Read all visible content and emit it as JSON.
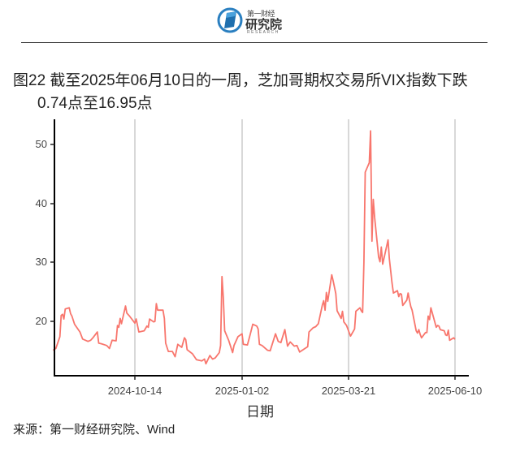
{
  "header": {
    "logo_title": "第一财经",
    "logo_name": "研究院",
    "logo_sub": "RESEARCH"
  },
  "figure": {
    "title_line1": "图22  截至2025年06月10日的一周，芝加哥期权交易所VIX指数下跌",
    "title_line2": "0.74点至16.95点",
    "source": "来源：第一财经研究院、Wind"
  },
  "colors": {
    "line": "#F8766D",
    "grid": "#BEBEBE",
    "axis": "#000000"
  },
  "chart_data": {
    "type": "line",
    "title": "截至2025年06月10日的一周，芝加哥期权交易所VIX指数下跌0.74点至16.95点",
    "xlabel": "日期",
    "ylabel": "",
    "ylim": [
      10.7,
      54.5
    ],
    "yticks": [
      20,
      30,
      40,
      50
    ],
    "xticks": [
      "2024-10-14",
      "2025-01-02",
      "2025-03-21",
      "2025-06-10"
    ],
    "grid": "vertical lines at x ticks",
    "legend": "none",
    "series": [
      {
        "name": "VIX",
        "points": [
          [
            "2024-08-14",
            15.1
          ],
          [
            "2024-08-16",
            15.4
          ],
          [
            "2024-08-19",
            17.4
          ],
          [
            "2024-08-20",
            21.0
          ],
          [
            "2024-08-21",
            21.2
          ],
          [
            "2024-08-22",
            20.4
          ],
          [
            "2024-08-23",
            22.1
          ],
          [
            "2024-08-26",
            22.3
          ],
          [
            "2024-08-27",
            21.3
          ],
          [
            "2024-08-28",
            20.9
          ],
          [
            "2024-08-30",
            19.5
          ],
          [
            "2024-09-03",
            18.2
          ],
          [
            "2024-09-05",
            17.0
          ],
          [
            "2024-09-09",
            16.6
          ],
          [
            "2024-09-11",
            16.8
          ],
          [
            "2024-09-13",
            17.3
          ],
          [
            "2024-09-16",
            18.2
          ],
          [
            "2024-09-17",
            16.3
          ],
          [
            "2024-09-19",
            16.2
          ],
          [
            "2024-09-23",
            15.9
          ],
          [
            "2024-09-25",
            15.4
          ],
          [
            "2024-09-27",
            16.8
          ],
          [
            "2024-09-30",
            16.7
          ],
          [
            "2024-10-01",
            19.3
          ],
          [
            "2024-10-02",
            19.0
          ],
          [
            "2024-10-03",
            20.5
          ],
          [
            "2024-10-04",
            19.6
          ],
          [
            "2024-10-07",
            22.6
          ],
          [
            "2024-10-08",
            21.4
          ],
          [
            "2024-10-10",
            20.9
          ],
          [
            "2024-10-14",
            19.7
          ],
          [
            "2024-10-15",
            20.4
          ],
          [
            "2024-10-17",
            18.2
          ],
          [
            "2024-10-21",
            18.4
          ],
          [
            "2024-10-23",
            19.2
          ],
          [
            "2024-10-24",
            19.0
          ],
          [
            "2024-10-25",
            20.4
          ],
          [
            "2024-10-28",
            19.9
          ],
          [
            "2024-10-29",
            20.0
          ],
          [
            "2024-10-30",
            23.0
          ],
          [
            "2024-10-31",
            21.9
          ],
          [
            "2024-11-04",
            21.9
          ],
          [
            "2024-11-05",
            20.5
          ],
          [
            "2024-11-06",
            16.3
          ],
          [
            "2024-11-08",
            14.9
          ],
          [
            "2024-11-11",
            14.9
          ],
          [
            "2024-11-13",
            14.0
          ],
          [
            "2024-11-15",
            16.1
          ],
          [
            "2024-11-18",
            15.6
          ],
          [
            "2024-11-20",
            17.2
          ],
          [
            "2024-11-21",
            16.9
          ],
          [
            "2024-11-22",
            15.2
          ],
          [
            "2024-11-26",
            14.5
          ],
          [
            "2024-11-29",
            13.5
          ],
          [
            "2024-12-03",
            13.3
          ],
          [
            "2024-12-05",
            13.6
          ],
          [
            "2024-12-06",
            12.8
          ],
          [
            "2024-12-09",
            14.2
          ],
          [
            "2024-12-11",
            13.6
          ],
          [
            "2024-12-13",
            13.8
          ],
          [
            "2024-12-16",
            14.7
          ],
          [
            "2024-12-17",
            15.9
          ],
          [
            "2024-12-18",
            27.6
          ],
          [
            "2024-12-19",
            24.1
          ],
          [
            "2024-12-20",
            18.4
          ],
          [
            "2024-12-23",
            16.8
          ],
          [
            "2024-12-26",
            14.7
          ],
          [
            "2024-12-27",
            15.9
          ],
          [
            "2024-12-30",
            17.4
          ],
          [
            "2025-01-02",
            17.9
          ],
          [
            "2025-01-03",
            16.1
          ],
          [
            "2025-01-06",
            16.0
          ],
          [
            "2025-01-08",
            17.7
          ],
          [
            "2025-01-10",
            19.5
          ],
          [
            "2025-01-13",
            19.2
          ],
          [
            "2025-01-14",
            18.7
          ],
          [
            "2025-01-15",
            16.1
          ],
          [
            "2025-01-17",
            15.9
          ],
          [
            "2025-01-21",
            15.1
          ],
          [
            "2025-01-23",
            15.0
          ],
          [
            "2025-01-27",
            17.9
          ],
          [
            "2025-01-29",
            16.6
          ],
          [
            "2025-01-31",
            16.4
          ],
          [
            "2025-02-03",
            18.6
          ],
          [
            "2025-02-05",
            15.8
          ],
          [
            "2025-02-07",
            16.5
          ],
          [
            "2025-02-10",
            15.8
          ],
          [
            "2025-02-12",
            15.9
          ],
          [
            "2025-02-14",
            14.8
          ],
          [
            "2025-02-18",
            15.4
          ],
          [
            "2025-02-20",
            15.7
          ],
          [
            "2025-02-21",
            18.2
          ],
          [
            "2025-02-24",
            18.9
          ],
          [
            "2025-02-26",
            19.1
          ],
          [
            "2025-02-28",
            19.6
          ],
          [
            "2025-03-03",
            22.8
          ],
          [
            "2025-03-04",
            23.5
          ],
          [
            "2025-03-05",
            21.9
          ],
          [
            "2025-03-06",
            24.9
          ],
          [
            "2025-03-07",
            23.4
          ],
          [
            "2025-03-10",
            27.9
          ],
          [
            "2025-03-11",
            26.9
          ],
          [
            "2025-03-13",
            24.7
          ],
          [
            "2025-03-14",
            21.8
          ],
          [
            "2025-03-17",
            20.5
          ],
          [
            "2025-03-18",
            21.7
          ],
          [
            "2025-03-19",
            19.9
          ],
          [
            "2025-03-21",
            19.3
          ],
          [
            "2025-03-24",
            17.5
          ],
          [
            "2025-03-26",
            18.3
          ],
          [
            "2025-03-27",
            18.7
          ],
          [
            "2025-03-28",
            21.7
          ],
          [
            "2025-03-31",
            22.3
          ],
          [
            "2025-04-01",
            21.8
          ],
          [
            "2025-04-02",
            21.5
          ],
          [
            "2025-04-03",
            30.0
          ],
          [
            "2025-04-04",
            45.3
          ],
          [
            "2025-04-07",
            46.9
          ],
          [
            "2025-04-08",
            52.3
          ],
          [
            "2025-04-09",
            33.6
          ],
          [
            "2025-04-10",
            40.7
          ],
          [
            "2025-04-11",
            37.6
          ],
          [
            "2025-04-14",
            30.9
          ],
          [
            "2025-04-15",
            30.1
          ],
          [
            "2025-04-16",
            32.6
          ],
          [
            "2025-04-17",
            29.7
          ],
          [
            "2025-04-21",
            33.8
          ],
          [
            "2025-04-22",
            30.6
          ],
          [
            "2025-04-23",
            28.5
          ],
          [
            "2025-04-24",
            26.5
          ],
          [
            "2025-04-25",
            24.8
          ],
          [
            "2025-04-28",
            25.2
          ],
          [
            "2025-04-29",
            24.2
          ],
          [
            "2025-04-30",
            24.7
          ],
          [
            "2025-05-01",
            24.6
          ],
          [
            "2025-05-02",
            22.7
          ],
          [
            "2025-05-05",
            23.6
          ],
          [
            "2025-05-06",
            24.8
          ],
          [
            "2025-05-07",
            23.6
          ],
          [
            "2025-05-08",
            22.5
          ],
          [
            "2025-05-09",
            21.9
          ],
          [
            "2025-05-12",
            18.4
          ],
          [
            "2025-05-13",
            18.0
          ],
          [
            "2025-05-14",
            18.6
          ],
          [
            "2025-05-15",
            17.8
          ],
          [
            "2025-05-16",
            17.2
          ],
          [
            "2025-05-19",
            18.1
          ],
          [
            "2025-05-20",
            18.1
          ],
          [
            "2025-05-21",
            20.9
          ],
          [
            "2025-05-22",
            20.3
          ],
          [
            "2025-05-23",
            22.3
          ],
          [
            "2025-05-27",
            19.0
          ],
          [
            "2025-05-28",
            19.3
          ],
          [
            "2025-05-29",
            19.2
          ],
          [
            "2025-05-30",
            18.6
          ],
          [
            "2025-06-02",
            18.4
          ],
          [
            "2025-06-03",
            17.7
          ],
          [
            "2025-06-04",
            17.6
          ],
          [
            "2025-06-05",
            18.5
          ],
          [
            "2025-06-06",
            16.8
          ],
          [
            "2025-06-09",
            17.2
          ],
          [
            "2025-06-10",
            16.95
          ]
        ]
      }
    ],
    "annotations": []
  },
  "axis": {
    "y_labels": [
      "50",
      "40",
      "30",
      "20"
    ],
    "x_labels": [
      "2024-10-14",
      "2025-01-02",
      "2025-03-21",
      "2025-06-10"
    ],
    "x_title": "日期"
  }
}
